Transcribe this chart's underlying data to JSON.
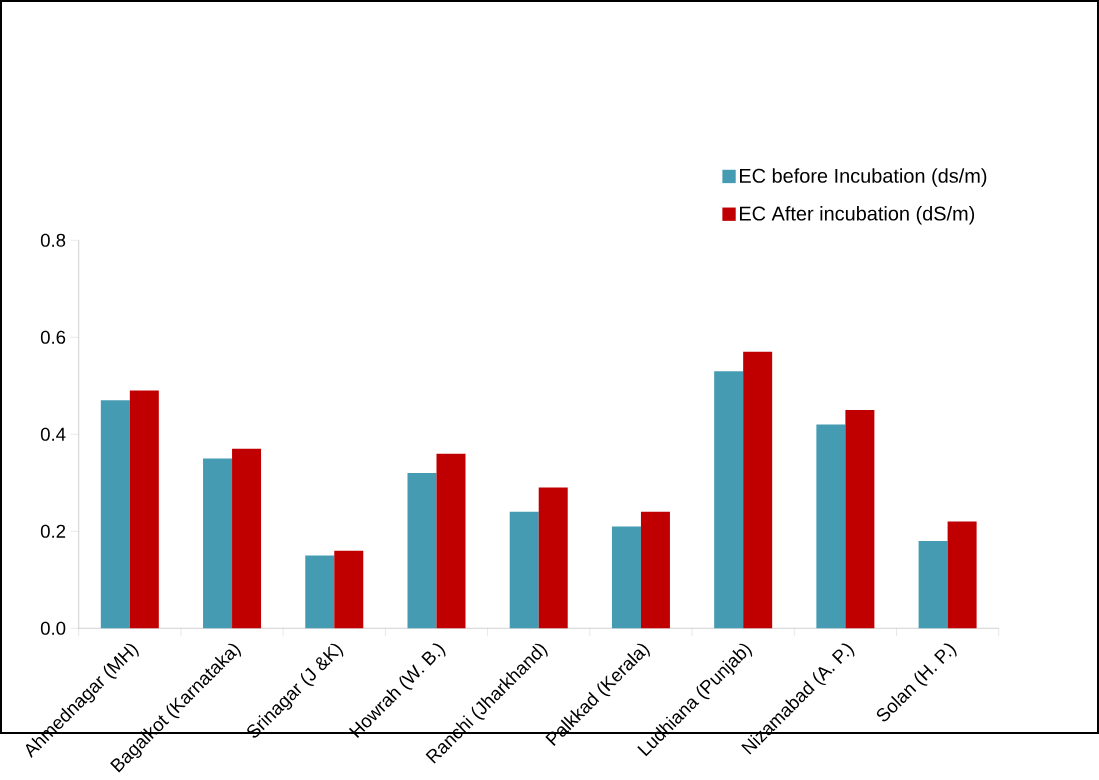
{
  "chart_data": {
    "type": "bar",
    "categories": [
      "Ahmednagar (MH)",
      "Bagalkot (Karnataka)",
      "Srinagar (J &K)",
      "Howrah (W. B.)",
      "Ranchi (Jharkhand)",
      "Palkkad (Kerala)",
      "Ludhiana (Punjab)",
      "Nizamabad (A. P.)",
      "Solan (H. P.)"
    ],
    "series": [
      {
        "name": "EC before Incubation (ds/m)",
        "color": "#449bb2",
        "values": [
          0.47,
          0.35,
          0.15,
          0.32,
          0.24,
          0.21,
          0.53,
          0.42,
          0.18
        ]
      },
      {
        "name": "EC After incubation (dS/m)",
        "color": "#c00000",
        "values": [
          0.49,
          0.37,
          0.16,
          0.36,
          0.29,
          0.24,
          0.57,
          0.45,
          0.22
        ]
      }
    ],
    "ylim": [
      0,
      0.8
    ],
    "yticks": [
      {
        "value": 0,
        "label": "0.0"
      },
      0.2,
      0.4,
      0.6,
      0.8
    ],
    "legend": "top right"
  }
}
